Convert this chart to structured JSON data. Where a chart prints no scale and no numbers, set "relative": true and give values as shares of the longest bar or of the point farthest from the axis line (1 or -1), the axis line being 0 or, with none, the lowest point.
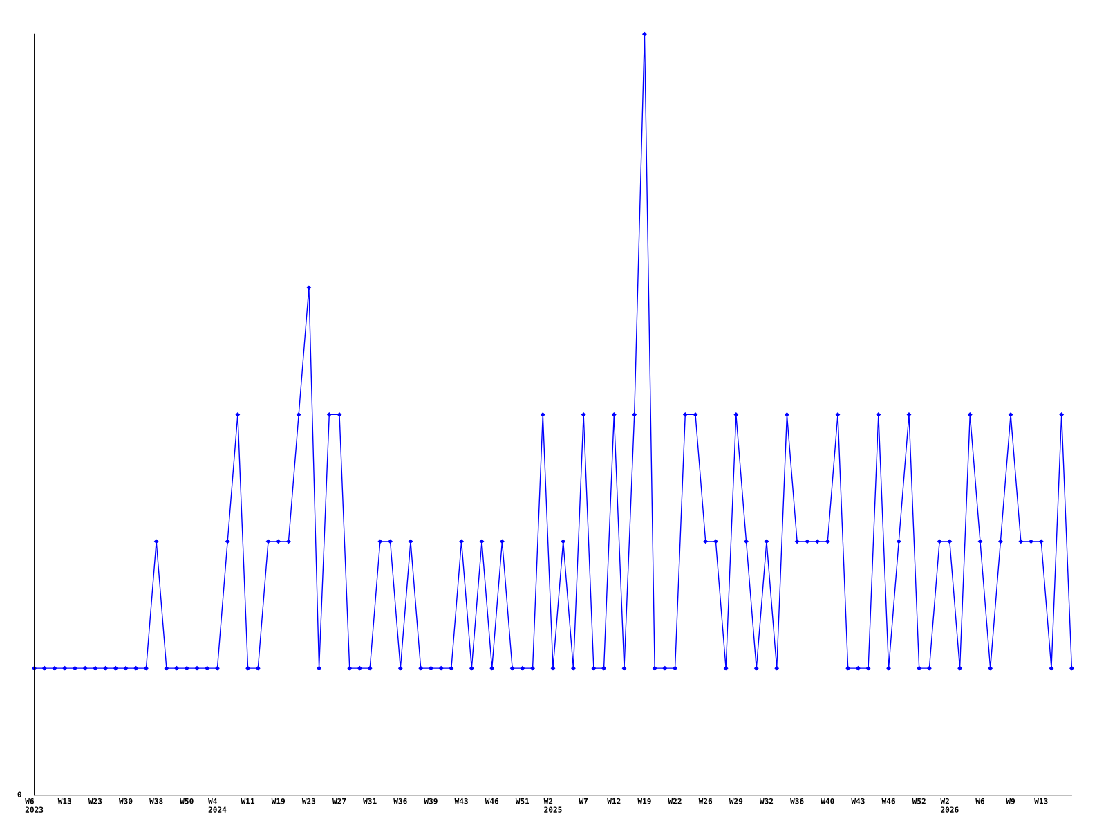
{
  "chart_data": {
    "type": "line",
    "relative": true,
    "marker": "diamond",
    "line_style": "solid",
    "grid": false,
    "legend": false,
    "annotations": [
      "0"
    ],
    "categories": [
      "W6\n2023",
      null,
      null,
      "W13",
      null,
      null,
      "W23",
      null,
      null,
      "W30",
      null,
      null,
      "W38",
      null,
      null,
      "W50",
      null,
      null,
      "W4\n2024",
      null,
      null,
      "W11",
      null,
      null,
      "W19",
      null,
      null,
      "W23",
      null,
      null,
      "W27",
      null,
      null,
      "W31",
      null,
      null,
      "W36",
      null,
      null,
      "W39",
      null,
      null,
      "W43",
      null,
      null,
      "W46",
      null,
      null,
      "W51",
      null,
      null,
      "W2\n2025",
      null,
      null,
      "W7",
      null,
      null,
      "W12",
      null,
      null,
      "W19",
      null,
      null,
      "W22",
      null,
      null,
      "W26",
      null,
      null,
      "W29",
      null,
      null,
      "W32",
      null,
      null,
      "W36",
      null,
      null,
      "W40",
      null,
      null,
      "W43",
      null,
      null,
      "W46",
      null,
      null,
      "W52",
      null,
      null,
      "W2\n2026",
      null,
      null,
      "W6",
      null,
      null,
      "W9",
      null,
      null,
      "W13",
      null,
      null,
      null
    ],
    "series": [
      {
        "color": "#0000ff",
        "values": [
          0.1667,
          0.1667,
          0.1667,
          0.1667,
          0.1667,
          0.1667,
          0.1667,
          0.1667,
          0.1667,
          0.1667,
          0.1667,
          0.1667,
          0.3333,
          0.1667,
          0.1667,
          0.1667,
          0.1667,
          0.1667,
          0.1667,
          0.3333,
          0.5,
          0.1667,
          0.1667,
          0.3333,
          0.3333,
          0.3333,
          0.5,
          0.6667,
          0.1667,
          0.5,
          0.5,
          0.1667,
          0.1667,
          0.1667,
          0.3333,
          0.3333,
          0.1667,
          0.3333,
          0.1667,
          0.1667,
          0.1667,
          0.1667,
          0.3333,
          0.1667,
          0.3333,
          0.1667,
          0.3333,
          0.1667,
          0.1667,
          0.1667,
          0.5,
          0.1667,
          0.3333,
          0.1667,
          0.5,
          0.1667,
          0.1667,
          0.5,
          0.1667,
          0.5,
          1,
          0.1667,
          0.1667,
          0.1667,
          0.5,
          0.5,
          0.3333,
          0.3333,
          0.1667,
          0.5,
          0.3333,
          0.1667,
          0.3333,
          0.1667,
          0.5,
          0.3333,
          0.3333,
          0.3333,
          0.3333,
          0.5,
          0.1667,
          0.1667,
          0.1667,
          0.5,
          0.1667,
          0.3333,
          0.5,
          0.1667,
          0.1667,
          0.3333,
          0.3333,
          0.1667,
          0.5,
          0.3333,
          0.1667,
          0.3333,
          0.5,
          0.3333,
          0.3333,
          0.3333,
          0.1667,
          0.5,
          0.1667
        ]
      }
    ]
  }
}
